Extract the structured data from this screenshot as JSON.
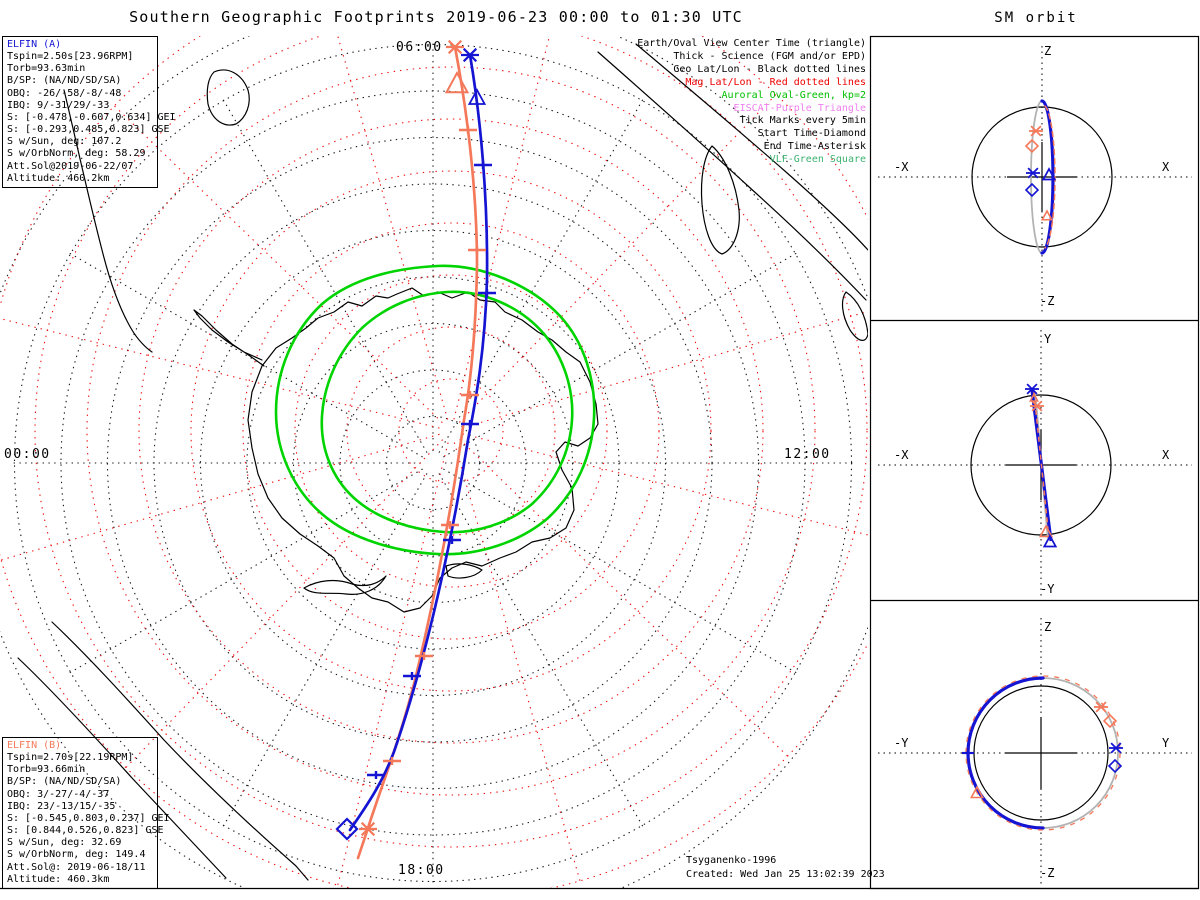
{
  "title": "Southern Geographic Footprints 2019-06-23 00:00 to 01:30 UTC",
  "sm_orbit_title": "SM orbit",
  "legend": {
    "lines": [
      {
        "text": "Earth/Oval View Center Time (triangle)",
        "color": "black"
      },
      {
        "text": "Thick - Science (FGM and/or EPD)",
        "color": "black"
      },
      {
        "text": "Geo Lat/Lon - Black dotted lines",
        "color": "black"
      },
      {
        "text": "Mag Lat/Lon - Red dotted lines",
        "color": "red"
      },
      {
        "text": "Auroral Oval-Green, kp=2",
        "color": "green"
      },
      {
        "text": "EISCAT-Purple Triangle",
        "color": "violet"
      },
      {
        "text": "Tick Marks every 5min",
        "color": "black"
      },
      {
        "text": "Start Time-Diamond",
        "color": "black"
      },
      {
        "text": "End Time-Asterisk",
        "color": "black"
      },
      {
        "text": "VLF-Green Square",
        "color": "seagreen"
      }
    ]
  },
  "elfin_a": {
    "title": "ELFIN (A)",
    "lines": [
      "Tspin=2.50s[23.96RPM]",
      "Torb=93.63min",
      "B/SP: (NA/ND/SD/SA)",
      "OBQ: -26/-58/-8/-48",
      "IBQ: 9/-31/29/-33",
      "S: [-0.478,-0.607,0.634] GEI",
      "S: [-0.293,0.485,0.823] GSE",
      "S w/Sun, deg: 107.2",
      "S w/OrbNorm, deg: 58.29",
      "Att.Sol@2019-06-22/07",
      "Altitude: 460.2km"
    ]
  },
  "elfin_b": {
    "title": "ELFIN (B)",
    "lines": [
      "Tspin=2.70s[22.19RPM]",
      "Torb=93.66min",
      "B/SP: (NA/ND/SD/SA)",
      "OBQ: 3/-27/-4/-37",
      "IBQ: 23/-13/15/-35",
      "S: [-0.545,0.803,0.237] GEI",
      "S: [0.844,0.526,0.823] GSE",
      "S w/Sun, deg: 32.69",
      "S w/OrbNorm, deg: 149.4",
      "Att.Sol@: 2019-06-18/11",
      "Altitude: 460.3km"
    ]
  },
  "clock": {
    "top": "06:00",
    "right": "12:00",
    "bottom": "18:00",
    "left": "00:00"
  },
  "footer": {
    "model": "Tsyganenko-1996",
    "created": "Created: Wed Jan 25 13:02:39 2023"
  },
  "panels": [
    {
      "top": "Z",
      "bottom": "-Z",
      "left": "-X",
      "right": "X"
    },
    {
      "top": "Y",
      "bottom": "-Y",
      "left": "-X",
      "right": "X"
    },
    {
      "top": "Z",
      "bottom": "-Z",
      "left": "-Y",
      "right": "Y"
    }
  ],
  "colors": {
    "elfin_a": "#1414d2",
    "elfin_b": "#f4795a",
    "geo_grid": "#1a1a1a",
    "mag_grid": "#ee1111",
    "auroral_oval": "#00d400",
    "eiscat": "#ee82ee",
    "vlf": "#3cb371",
    "orbit_far_side": "#b3b3b3",
    "coastline": "#000000"
  },
  "chart_data": {
    "type": "line",
    "title": "Southern Geographic Footprints 2019-06-23 00:00 to 01:30 UTC",
    "projection": "south polar azimuthal map with MLT clock-angle labels",
    "angular_ticks": [
      "00:00",
      "06:00",
      "12:00",
      "18:00"
    ],
    "grids": [
      {
        "name": "Geo Lat/Lon",
        "style": "black dotted"
      },
      {
        "name": "Mag Lat/Lon",
        "style": "red dotted"
      }
    ],
    "series": [
      {
        "name": "ELFIN (A) footprint",
        "color": "#1414d2",
        "start_marker": "diamond (00:00, lower left)",
        "end_marker": "asterisk (01:30, top)",
        "tick_interval_min": 5,
        "thick": "science (FGM and/or EPD)"
      },
      {
        "name": "ELFIN (B) footprint",
        "color": "#f4795a",
        "start_marker": "diamond/asterisk (00:00, lower left)",
        "end_marker": "asterisk (01:30, top)",
        "tick_interval_min": 5
      },
      {
        "name": "Auroral oval kp=2",
        "color": "#00d400",
        "shape": "double green oval around magnetic pole"
      }
    ],
    "side_panels": [
      {
        "title": "SM orbit X-Z view",
        "axes": [
          "-X",
          "X",
          "Z",
          "-Z"
        ],
        "content": "near-polar orbit seen edge-on (thin ellipse)"
      },
      {
        "title": "SM orbit X-Y view",
        "axes": [
          "-X",
          "X",
          "Y",
          "-Y"
        ],
        "content": "orbit seen as near-vertical line"
      },
      {
        "title": "SM orbit Y-Z view",
        "axes": [
          "-Y",
          "Y",
          "Z",
          "-Z"
        ],
        "content": "orbit seen face-on (circle around Earth)"
      }
    ],
    "model": "Tsyganenko-1996"
  }
}
